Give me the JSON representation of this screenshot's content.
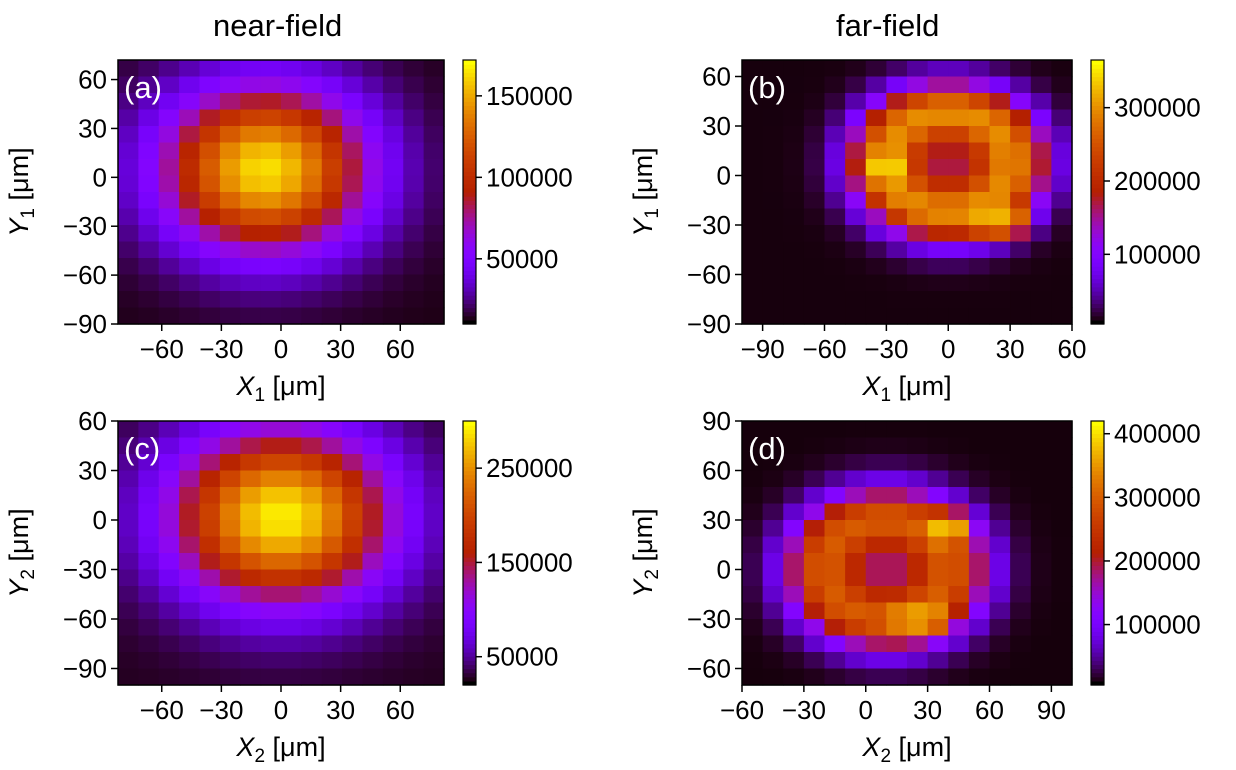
{
  "columns": [
    "near-field",
    "far-field"
  ],
  "colors": {
    "text": "#000000",
    "axis": "#000000",
    "panel_label": "#ffffff",
    "background": "#ffffff"
  },
  "colormap": "gnuplot",
  "chart_data": [
    {
      "type": "heatmap",
      "panel_label": "(a)",
      "column": "near-field",
      "xlabel": "X_1 [μm]",
      "ylabel": "Y_1 [μm]",
      "xlim": [
        -82,
        82
      ],
      "ylim": [
        -90,
        72
      ],
      "xticks": [
        -60,
        -30,
        0,
        30,
        60
      ],
      "yticks": [
        -90,
        -60,
        -30,
        0,
        30,
        60
      ],
      "colorbar": {
        "min": 10000,
        "max": 172000,
        "ticks": [
          50000,
          100000,
          150000
        ]
      },
      "grid": {
        "nx": 16,
        "ny": 16
      },
      "pattern": {
        "kind": "gaussian",
        "center": [
          -8,
          5
        ],
        "sigma": [
          36,
          35
        ],
        "peak": 165000,
        "base": 12000
      }
    },
    {
      "type": "heatmap",
      "panel_label": "(b)",
      "column": "far-field",
      "xlabel": "X_1 [μm]",
      "ylabel": "Y_1 [μm]",
      "xlim": [
        -100,
        60
      ],
      "ylim": [
        -90,
        70
      ],
      "xticks": [
        -90,
        -60,
        -30,
        0,
        30,
        60
      ],
      "yticks": [
        -90,
        -60,
        -30,
        0,
        30,
        60
      ],
      "colorbar": {
        "min": 5000,
        "max": 365000,
        "ticks": [
          100000,
          200000,
          300000
        ]
      },
      "grid": {
        "nx": 16,
        "ny": 16
      },
      "pattern": {
        "kind": "ring",
        "center": [
          0,
          8
        ],
        "radius": 30,
        "width": 14,
        "peak": 300000,
        "center_level": 140000,
        "base": 8000
      },
      "hotspots": [
        {
          "x": -30,
          "y": 5,
          "value": 360000
        },
        {
          "x": 20,
          "y": -28,
          "value": 345000
        },
        {
          "x": 30,
          "y": -28,
          "value": 340000
        }
      ]
    },
    {
      "type": "heatmap",
      "panel_label": "(c)",
      "column": "near-field",
      "xlabel": "X_2 [μm]",
      "ylabel": "Y_2 [μm]",
      "xlim": [
        -82,
        82
      ],
      "ylim": [
        -100,
        60
      ],
      "xticks": [
        -60,
        -30,
        0,
        30,
        60
      ],
      "yticks": [
        -90,
        -60,
        -30,
        0,
        30,
        60
      ],
      "colorbar": {
        "min": 20000,
        "max": 300000,
        "ticks": [
          50000,
          150000,
          250000
        ]
      },
      "grid": {
        "nx": 16,
        "ny": 16
      },
      "pattern": {
        "kind": "gaussian",
        "center": [
          0,
          2
        ],
        "sigma": [
          38,
          36
        ],
        "peak": 295000,
        "base": 25000
      }
    },
    {
      "type": "heatmap",
      "panel_label": "(d)",
      "column": "far-field",
      "xlabel": "X_2 [μm]",
      "ylabel": "Y_2 [μm]",
      "xlim": [
        -60,
        100
      ],
      "ylim": [
        -70,
        90
      ],
      "xticks": [
        -60,
        -30,
        0,
        30,
        60,
        90
      ],
      "yticks": [
        -60,
        -30,
        0,
        30,
        60,
        90
      ],
      "colorbar": {
        "min": 5000,
        "max": 420000,
        "ticks": [
          100000,
          200000,
          300000,
          400000
        ]
      },
      "grid": {
        "nx": 16,
        "ny": 16
      },
      "pattern": {
        "kind": "ring",
        "center": [
          10,
          0
        ],
        "radius": 30,
        "width": 15,
        "peak": 300000,
        "center_level": 150000,
        "base": 8000
      },
      "hotspots": [
        {
          "x": 40,
          "y": 25,
          "value": 420000
        },
        {
          "x": 30,
          "y": -30,
          "value": 390000
        },
        {
          "x": 20,
          "y": -30,
          "value": 370000
        }
      ]
    }
  ]
}
